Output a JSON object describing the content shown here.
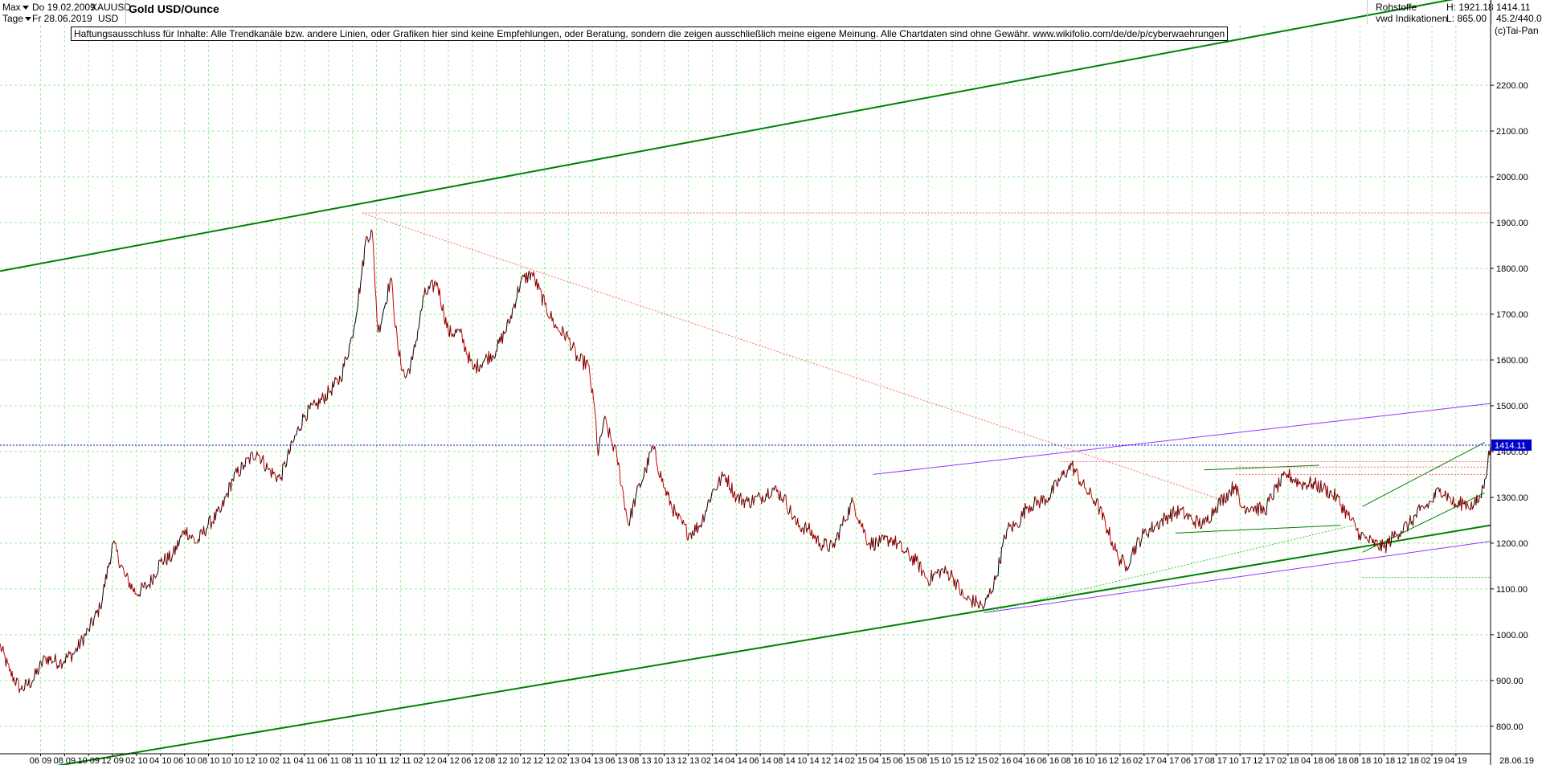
{
  "header": {
    "range_label": "Max",
    "interval_label": "Tage",
    "date_from": "Do 19.02.2009",
    "date_to": "Fr 28.06.2019",
    "symbol": "XAUUSD",
    "currency": "USD",
    "title": "Gold USD/Ounce",
    "category": "Rohstoffe",
    "source": "vwd Indikationen",
    "high_label": "H: 1921.18",
    "low_label": "L: 865.00",
    "last_value": "1414.11",
    "ratio": "45.2/440.0",
    "copyright": "(c)Tai-Pan"
  },
  "disclaimer": "Haftungsausschluss für Inhalte: Alle Trendkanäle bzw. andere Linien, oder Grafiken hier sind keine Empfehlungen, oder Beratung, sondern die zeigen ausschließlich meine eigene Meinung. Alle Chartdaten sind ohne Gewähr.  www.wikifolio.com/de/de/p/cyberwaehrungen",
  "colors": {
    "price": "#000000",
    "price_down": "#cc0000",
    "trend_green": "#008000",
    "trend_light_green": "#33cc33",
    "trend_purple": "#9933ff",
    "dotted_red": "#ff6666",
    "dotted_blue": "#0000cc",
    "price_tag_bg": "#0000cc",
    "grid": "#99ee99"
  },
  "chart_data": {
    "type": "line",
    "title": "Gold USD/Ounce",
    "xlabel": "",
    "ylabel": "",
    "ylim": [
      740,
      2330
    ],
    "y_ticks": [
      800,
      900,
      1000,
      1100,
      1200,
      1300,
      1400,
      1500,
      1600,
      1700,
      1800,
      1900,
      2000,
      2100,
      2200
    ],
    "y_tick_labels": [
      "800.00",
      "900.00",
      "1000.00",
      "1100.00",
      "1200.00",
      "1300.00",
      "1400.00",
      "1500.00",
      "1600.00",
      "1700.00",
      "1800.00",
      "1900.00",
      "2000.00",
      "2100.00",
      "2200.00"
    ],
    "x_tick_labels": [
      "06 09",
      "08 09",
      "10 09",
      "12 09",
      "02 10",
      "04 10",
      "06 10",
      "08 10",
      "10 10",
      "12 10",
      "02 11",
      "04 11",
      "06 11",
      "08 11",
      "10 11",
      "12 11",
      "02 12",
      "04 12",
      "06 12",
      "08 12",
      "10 12",
      "12 12",
      "02 13",
      "04 13",
      "06 13",
      "08 13",
      "10 13",
      "12 13",
      "02 14",
      "04 14",
      "06 14",
      "08 14",
      "10 14",
      "12 14",
      "02 15",
      "04 15",
      "06 15",
      "08 15",
      "10 15",
      "12 15",
      "02 16",
      "04 16",
      "06 16",
      "08 16",
      "10 16",
      "12 16",
      "02 17",
      "04 17",
      "06 17",
      "08 17",
      "10 17",
      "12 17",
      "02 18",
      "04 18",
      "06 18",
      "08 18",
      "10 18",
      "12 18",
      "02 19",
      "04 19"
    ],
    "x_end_label": "28.06.19",
    "x_range": [
      2009.134,
      2019.49
    ],
    "grid": true,
    "last_price": 1414.11,
    "high": 1921.18,
    "low": 865.0,
    "series": [
      {
        "x": [
          2009.13,
          2009.2,
          2009.28,
          2009.36,
          2009.45,
          2009.55,
          2009.65,
          2009.75,
          2009.83,
          2009.92,
          2010.0,
          2010.08,
          2010.17,
          2010.25,
          2010.33,
          2010.42,
          2010.5,
          2010.58,
          2010.67,
          2010.75,
          2010.83,
          2010.92,
          2011.0,
          2011.08,
          2011.17,
          2011.25,
          2011.33,
          2011.42,
          2011.5,
          2011.58,
          2011.64,
          2011.68,
          2011.72,
          2011.76,
          2011.8,
          2011.85,
          2011.9,
          2011.95,
          2012.0,
          2012.08,
          2012.17,
          2012.25,
          2012.33,
          2012.42,
          2012.5,
          2012.58,
          2012.67,
          2012.75,
          2012.83,
          2012.92,
          2013.0,
          2013.08,
          2013.15,
          2013.22,
          2013.27,
          2013.29,
          2013.33,
          2013.42,
          2013.5,
          2013.55,
          2013.62,
          2013.67,
          2013.75,
          2013.83,
          2013.92,
          2014.0,
          2014.08,
          2014.17,
          2014.25,
          2014.33,
          2014.42,
          2014.5,
          2014.58,
          2014.67,
          2014.75,
          2014.83,
          2014.92,
          2015.0,
          2015.06,
          2015.17,
          2015.25,
          2015.33,
          2015.42,
          2015.5,
          2015.58,
          2015.67,
          2015.75,
          2015.83,
          2015.92,
          2015.97,
          2016.05,
          2016.13,
          2016.2,
          2016.27,
          2016.35,
          2016.42,
          2016.5,
          2016.55,
          2016.58,
          2016.67,
          2016.75,
          2016.83,
          2016.9,
          2016.96,
          2017.0,
          2017.08,
          2017.17,
          2017.25,
          2017.33,
          2017.42,
          2017.5,
          2017.58,
          2017.67,
          2017.72,
          2017.75,
          2017.83,
          2017.92,
          2018.0,
          2018.08,
          2018.17,
          2018.25,
          2018.33,
          2018.42,
          2018.5,
          2018.58,
          2018.62,
          2018.67,
          2018.75,
          2018.83,
          2018.92,
          2019.0,
          2019.08,
          2019.14,
          2019.2,
          2019.25,
          2019.3,
          2019.37,
          2019.42,
          2019.45,
          2019.49
        ],
        "y": [
          980,
          920,
          880,
          900,
          950,
          940,
          960,
          1010,
          1060,
          1200,
          1130,
          1090,
          1110,
          1160,
          1170,
          1230,
          1200,
          1240,
          1270,
          1340,
          1370,
          1400,
          1360,
          1340,
          1420,
          1480,
          1500,
          1530,
          1560,
          1650,
          1770,
          1870,
          1880,
          1660,
          1710,
          1780,
          1620,
          1560,
          1600,
          1740,
          1770,
          1660,
          1660,
          1580,
          1600,
          1620,
          1680,
          1770,
          1790,
          1720,
          1670,
          1650,
          1600,
          1590,
          1480,
          1390,
          1470,
          1390,
          1240,
          1300,
          1360,
          1410,
          1320,
          1260,
          1220,
          1240,
          1310,
          1350,
          1300,
          1290,
          1300,
          1320,
          1300,
          1240,
          1230,
          1200,
          1190,
          1250,
          1290,
          1200,
          1200,
          1210,
          1180,
          1160,
          1120,
          1140,
          1130,
          1080,
          1070,
          1060,
          1120,
          1230,
          1240,
          1280,
          1290,
          1300,
          1340,
          1360,
          1370,
          1320,
          1290,
          1230,
          1170,
          1150,
          1180,
          1220,
          1240,
          1260,
          1270,
          1250,
          1240,
          1280,
          1310,
          1330,
          1280,
          1280,
          1270,
          1320,
          1350,
          1330,
          1330,
          1320,
          1300,
          1260,
          1220,
          1210,
          1200,
          1190,
          1220,
          1240,
          1270,
          1290,
          1320,
          1300,
          1280,
          1290,
          1280,
          1300,
          1340,
          1414
        ]
      }
    ],
    "lines": [
      {
        "style": "solid",
        "color": "trend_green",
        "x": [
          2009.134,
          2019.49
        ],
        "y": [
          1794,
          2403
        ]
      },
      {
        "style": "solid",
        "color": "trend_green",
        "x": [
          2009.134,
          2019.49
        ],
        "y": [
          693,
          1239
        ]
      },
      {
        "style": "solid",
        "color": "trend_purple",
        "x": [
          2015.97,
          2019.49
        ],
        "y": [
          1048,
          1204
        ]
      },
      {
        "style": "solid",
        "color": "trend_purple",
        "x": [
          2015.2,
          2019.49
        ],
        "y": [
          1350,
          1505
        ]
      },
      {
        "style": "solid",
        "color": "trend_green",
        "x": [
          2017.5,
          2018.3
        ],
        "y": [
          1360,
          1370
        ]
      },
      {
        "style": "solid",
        "color": "trend_green",
        "x": [
          2017.3,
          2018.45
        ],
        "y": [
          1222,
          1239
        ]
      },
      {
        "style": "solid",
        "color": "trend_green",
        "x": [
          2018.6,
          2019.45
        ],
        "y": [
          1180,
          1310
        ]
      },
      {
        "style": "solid",
        "color": "trend_green",
        "x": [
          2018.6,
          2019.45
        ],
        "y": [
          1280,
          1420
        ]
      },
      {
        "style": "dashed",
        "color": "trend_light_green",
        "x": [
          2015.97,
          2018.55
        ],
        "y": [
          1048,
          1240
        ]
      },
      {
        "style": "dashed",
        "color": "trend_light_green",
        "x": [
          2018.6,
          2019.49
        ],
        "y": [
          1125,
          1125
        ]
      },
      {
        "style": "dashed",
        "color": "dotted_red",
        "x": [
          2011.65,
          2017.62
        ],
        "y": [
          1921,
          1295
        ]
      },
      {
        "style": "dashed",
        "color": "dotted_red",
        "x": [
          2011.65,
          2019.49
        ],
        "y": [
          1921,
          1921
        ]
      },
      {
        "style": "dashed",
        "color": "dotted_red",
        "x": [
          2016.5,
          2019.49
        ],
        "y": [
          1378,
          1378
        ]
      },
      {
        "style": "dashed",
        "color": "dotted_red",
        "x": [
          2017.72,
          2019.49
        ],
        "y": [
          1366,
          1366
        ]
      },
      {
        "style": "dashed",
        "color": "dotted_red",
        "x": [
          2017.72,
          2019.49
        ],
        "y": [
          1350,
          1350
        ]
      },
      {
        "style": "dashed",
        "color": "dotted_blue",
        "x": [
          2009.134,
          2019.49
        ],
        "y": [
          1414,
          1414
        ]
      }
    ]
  }
}
